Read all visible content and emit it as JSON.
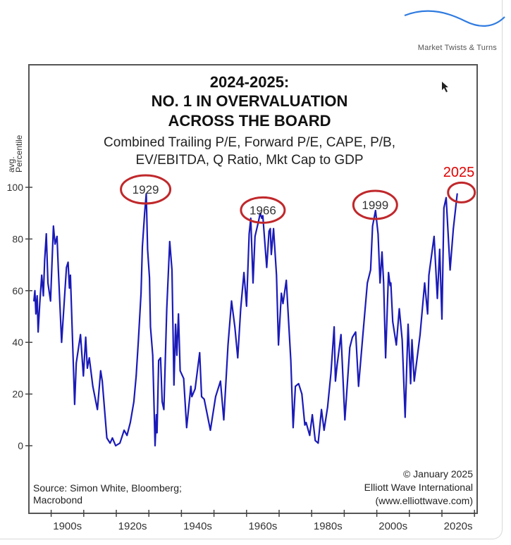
{
  "brand": {
    "name": "Market Twists & Turns",
    "accent": "#2f7be0"
  },
  "chart_data": {
    "type": "line",
    "title_lines": [
      "2024-2025:",
      "NO. 1 IN OVERVALUATION",
      "ACROSS THE BOARD"
    ],
    "subtitle_lines": [
      "Combined Trailing P/E, Forward P/E, CAPE, P/B,",
      "EV/EBITDA, Q Ratio, Mkt Cap to GDP"
    ],
    "ylabel_lines": [
      "avg.",
      "Percentile"
    ],
    "xlabel": "",
    "ylim": [
      0,
      100
    ],
    "xlim": [
      1893,
      2031
    ],
    "yticks": [
      0,
      20,
      40,
      60,
      80,
      100
    ],
    "xtick_labels": [
      {
        "label": "1900s",
        "decade": 1900
      },
      {
        "label": "1920s",
        "decade": 1920
      },
      {
        "label": "1940s",
        "decade": 1940
      },
      {
        "label": "1960s",
        "decade": 1960
      },
      {
        "label": "1980s",
        "decade": 1980
      },
      {
        "label": "2000s",
        "decade": 2000
      },
      {
        "label": "2020s",
        "decade": 2020
      }
    ],
    "grid": false,
    "line_color": "#1a1ab8",
    "annotation_color": "#c0282b",
    "annotations": [
      {
        "label": "1929",
        "year": 1929,
        "value": 97
      },
      {
        "label": "1966",
        "year": 1965,
        "value": 89
      },
      {
        "label": "1999",
        "year": 1999.5,
        "value": 91
      },
      {
        "label": "",
        "year": 2026,
        "value": 98
      }
    ],
    "highlight_label": "2025",
    "highlight_color": "#e00000",
    "source_lines": [
      "Source: Simon White, Bloomberg;",
      "Macrobond"
    ],
    "credit_lines": [
      "© January 2025",
      "Elliott Wave International",
      "(www.elliottwave.com)"
    ],
    "series": [
      {
        "points": [
          [
            1894.7,
            56
          ],
          [
            1895,
            60
          ],
          [
            1895.3,
            51
          ],
          [
            1895.7,
            58
          ],
          [
            1896,
            44
          ],
          [
            1896.5,
            55
          ],
          [
            1897.1,
            66
          ],
          [
            1897.6,
            58
          ],
          [
            1898,
            72
          ],
          [
            1898.5,
            82
          ],
          [
            1899,
            63
          ],
          [
            1899.8,
            56
          ],
          [
            1900.7,
            85
          ],
          [
            1901.2,
            78
          ],
          [
            1901.8,
            81
          ],
          [
            1902.2,
            68
          ],
          [
            1903.2,
            40
          ],
          [
            1904.7,
            69
          ],
          [
            1905.2,
            71
          ],
          [
            1905.6,
            61
          ],
          [
            1905.9,
            66
          ],
          [
            1907.2,
            16
          ],
          [
            1907.7,
            32
          ],
          [
            1909,
            43
          ],
          [
            1909.9,
            27
          ],
          [
            1910.6,
            42
          ],
          [
            1911.1,
            30
          ],
          [
            1911.7,
            34
          ],
          [
            1912.8,
            23
          ],
          [
            1914.2,
            14
          ],
          [
            1915.2,
            29
          ],
          [
            1915.7,
            25
          ],
          [
            1917.1,
            3
          ],
          [
            1918.1,
            1
          ],
          [
            1918.8,
            3
          ],
          [
            1919.8,
            0
          ],
          [
            1921.1,
            1
          ],
          [
            1922.4,
            6
          ],
          [
            1923.3,
            4
          ],
          [
            1924.3,
            9
          ],
          [
            1925.4,
            17
          ],
          [
            1926.1,
            27
          ],
          [
            1926.8,
            41
          ],
          [
            1927.6,
            59
          ],
          [
            1928,
            77
          ],
          [
            1928.7,
            90
          ],
          [
            1929.2,
            97.5
          ],
          [
            1929.6,
            76
          ],
          [
            1930.2,
            65
          ],
          [
            1930.5,
            46
          ],
          [
            1931.2,
            35
          ],
          [
            1931.9,
            0
          ],
          [
            1932.3,
            12
          ],
          [
            1932.5,
            5
          ],
          [
            1933,
            33
          ],
          [
            1933.6,
            34
          ],
          [
            1934.1,
            17
          ],
          [
            1934.6,
            14
          ],
          [
            1935.5,
            53
          ],
          [
            1936.4,
            79
          ],
          [
            1937.1,
            68
          ],
          [
            1937.7,
            23.5
          ],
          [
            1938.2,
            47
          ],
          [
            1938.6,
            35
          ],
          [
            1939.1,
            51
          ],
          [
            1939.6,
            29
          ],
          [
            1940.7,
            26
          ],
          [
            1941.6,
            7
          ],
          [
            1942.9,
            23
          ],
          [
            1943.2,
            19
          ],
          [
            1944.2,
            22
          ],
          [
            1945.6,
            36
          ],
          [
            1946.2,
            19
          ],
          [
            1947,
            18
          ],
          [
            1948.9,
            6
          ],
          [
            1950.5,
            19
          ],
          [
            1952,
            25
          ],
          [
            1953,
            10
          ],
          [
            1954.3,
            39
          ],
          [
            1955.4,
            56
          ],
          [
            1956.4,
            46
          ],
          [
            1957.3,
            34
          ],
          [
            1958.2,
            53
          ],
          [
            1959.2,
            67
          ],
          [
            1960,
            54
          ],
          [
            1960.8,
            82
          ],
          [
            1961.3,
            88
          ],
          [
            1962,
            63
          ],
          [
            1962.6,
            81
          ],
          [
            1963.7,
            87
          ],
          [
            1964.2,
            90
          ],
          [
            1964.7,
            88
          ],
          [
            1965,
            89
          ],
          [
            1966.2,
            69
          ],
          [
            1966.9,
            83
          ],
          [
            1967.3,
            84
          ],
          [
            1967.6,
            74
          ],
          [
            1968.3,
            84
          ],
          [
            1969.2,
            66
          ],
          [
            1969.8,
            39
          ],
          [
            1970.7,
            59
          ],
          [
            1971.2,
            55
          ],
          [
            1972.2,
            64
          ],
          [
            1973,
            46
          ],
          [
            1973.6,
            33
          ],
          [
            1974.3,
            7
          ],
          [
            1975,
            23
          ],
          [
            1976,
            24
          ],
          [
            1977,
            20
          ],
          [
            1977.9,
            8
          ],
          [
            1978.3,
            9
          ],
          [
            1979.4,
            4
          ],
          [
            1980.2,
            12
          ],
          [
            1981.1,
            2
          ],
          [
            1982,
            1
          ],
          [
            1983,
            14
          ],
          [
            1983.8,
            6
          ],
          [
            1984.9,
            15
          ],
          [
            1985.9,
            28
          ],
          [
            1986.9,
            46
          ],
          [
            1987.3,
            25
          ],
          [
            1987.8,
            31
          ],
          [
            1989,
            43
          ],
          [
            1990.2,
            10
          ],
          [
            1991.7,
            38
          ],
          [
            1992.5,
            42
          ],
          [
            1993.5,
            44
          ],
          [
            1994.4,
            23
          ],
          [
            1995.8,
            44
          ],
          [
            1997.1,
            63
          ],
          [
            1998.1,
            68
          ],
          [
            1998.7,
            85
          ],
          [
            1999.6,
            91
          ],
          [
            2000.4,
            82
          ],
          [
            2001,
            63
          ],
          [
            2001.6,
            75
          ],
          [
            2002.1,
            63
          ],
          [
            2002.7,
            34
          ],
          [
            2003.6,
            67
          ],
          [
            2004.1,
            62
          ],
          [
            2004.3,
            63
          ],
          [
            2004.9,
            48
          ],
          [
            2006,
            39
          ],
          [
            2006.9,
            53
          ],
          [
            2007.8,
            41
          ],
          [
            2008.7,
            11
          ],
          [
            2009.6,
            47
          ],
          [
            2010.4,
            24
          ],
          [
            2010.8,
            41
          ],
          [
            2011.5,
            25
          ],
          [
            2013.3,
            43
          ],
          [
            2014.7,
            63
          ],
          [
            2015.6,
            51
          ],
          [
            2016,
            66
          ],
          [
            2017.6,
            81
          ],
          [
            2018.6,
            57
          ],
          [
            2019.3,
            76
          ],
          [
            2020,
            49
          ],
          [
            2020.6,
            92
          ],
          [
            2021.3,
            96
          ],
          [
            2022.5,
            68
          ],
          [
            2023.5,
            84
          ],
          [
            2024.7,
            97.5
          ]
        ]
      }
    ]
  }
}
